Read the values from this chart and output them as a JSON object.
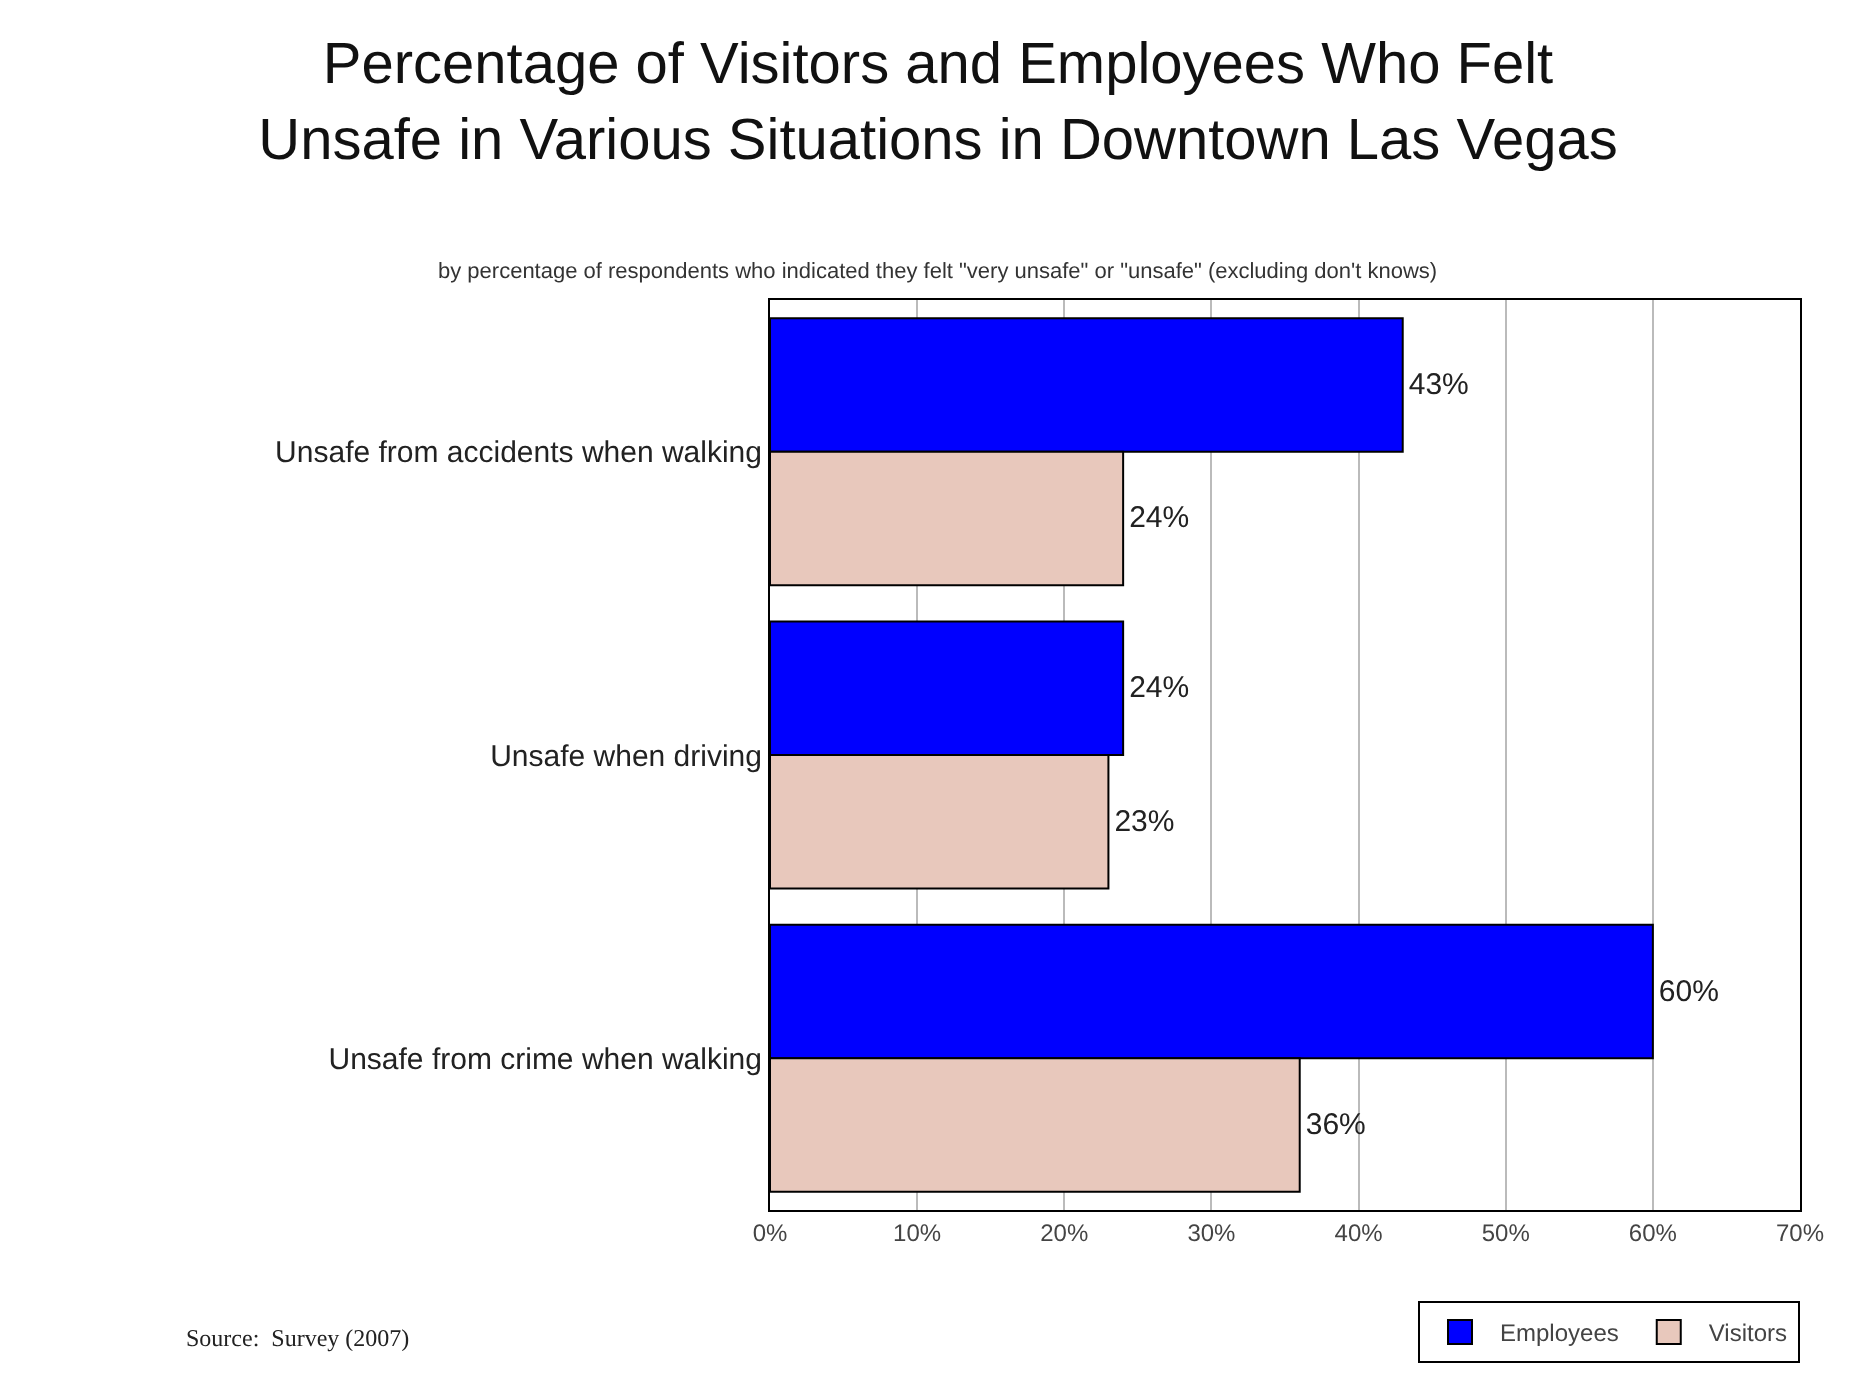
{
  "chart_data": {
    "type": "bar",
    "orientation": "horizontal",
    "title": "Percentage of Visitors and Employees Who Felt\nUnsafe in Various Situations in Downtown Las Vegas",
    "subtitle": "by percentage of respondents who indicated they felt \"very unsafe\" or \"unsafe\" (excluding don't knows)",
    "categories": [
      "Unsafe from accidents when walking",
      "Unsafe when driving",
      "Unsafe from crime when walking"
    ],
    "series": [
      {
        "name": "Employees",
        "color": "#0000ff",
        "values": [
          43,
          24,
          60
        ],
        "value_labels": [
          "43%",
          "24%",
          "60%"
        ]
      },
      {
        "name": "Visitors",
        "color": "#e8c8bc",
        "values": [
          24,
          23,
          36
        ],
        "value_labels": [
          "24%",
          "23%",
          "36%"
        ]
      }
    ],
    "xlim": [
      0,
      70
    ],
    "xticks": [
      {
        "value": 0,
        "label": "0%"
      },
      {
        "value": 10,
        "label": "10%"
      },
      {
        "value": 20,
        "label": "20%"
      },
      {
        "value": 30,
        "label": "30%"
      },
      {
        "value": 40,
        "label": "40%"
      },
      {
        "value": 50,
        "label": "50%"
      },
      {
        "value": 60,
        "label": "60%"
      },
      {
        "value": 70,
        "label": "70%"
      }
    ],
    "grid": "x",
    "legend": "bottom right",
    "annotations": [
      "Source:  Survey (2007)"
    ]
  }
}
